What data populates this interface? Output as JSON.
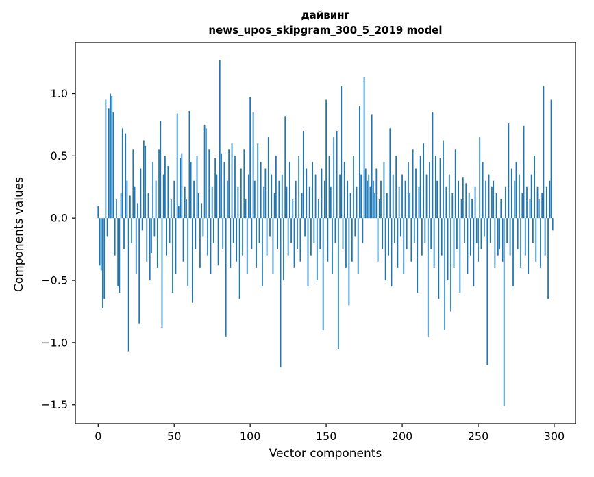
{
  "chart_data": {
    "type": "bar",
    "title": "дайвинг",
    "subtitle": "news_upos_skipgram_300_5_2019 model",
    "xlabel": "Vector components",
    "ylabel": "Components values",
    "bar_color": "#1f77b4",
    "x_start": 0,
    "xlim": [
      -15,
      314
    ],
    "ylim": [
      -1.65,
      1.41
    ],
    "xticks": [
      0,
      50,
      100,
      150,
      200,
      250,
      300
    ],
    "xtick_labels": [
      "0",
      "50",
      "100",
      "150",
      "200",
      "250",
      "300"
    ],
    "yticks": [
      1.0,
      0.5,
      0.0,
      -0.5,
      -1.0,
      -1.5
    ],
    "ytick_labels": [
      "1.0",
      "0.5",
      "0.0",
      "−0.5",
      "−1.0",
      "−1.5"
    ],
    "grid": false,
    "legend": "none",
    "values": [
      0.1,
      -0.38,
      -0.42,
      -0.72,
      -0.65,
      0.95,
      -0.15,
      0.88,
      1.0,
      0.98,
      0.85,
      -0.3,
      0.15,
      -0.55,
      -0.6,
      0.2,
      0.72,
      -0.25,
      0.68,
      0.3,
      -1.07,
      0.18,
      -0.2,
      0.55,
      0.25,
      -0.45,
      0.12,
      -0.85,
      0.4,
      -0.1,
      0.62,
      0.58,
      -0.35,
      0.2,
      -0.5,
      -0.28,
      0.45,
      -0.15,
      0.3,
      -0.4,
      0.55,
      0.78,
      -0.88,
      0.35,
      0.5,
      -0.3,
      0.42,
      -0.2,
      0.15,
      -0.6,
      0.3,
      -0.45,
      0.84,
      0.1,
      0.48,
      0.52,
      -0.35,
      0.25,
      0.15,
      -0.55,
      0.86,
      0.45,
      -0.68,
      0.3,
      -0.25,
      0.5,
      0.2,
      -0.4,
      0.12,
      -0.15,
      0.75,
      0.72,
      -0.3,
      0.55,
      -0.45,
      0.25,
      -0.2,
      0.48,
      0.35,
      -0.38,
      1.27,
      0.52,
      -0.25,
      0.45,
      -0.95,
      0.3,
      0.55,
      -0.4,
      0.6,
      -0.2,
      0.5,
      -0.35,
      0.25,
      -0.65,
      0.4,
      -0.3,
      0.55,
      0.15,
      -0.45,
      0.35,
      0.97,
      -0.25,
      0.85,
      0.3,
      -0.4,
      0.6,
      -0.2,
      0.45,
      -0.55,
      0.25,
      0.4,
      -0.3,
      0.65,
      -0.15,
      0.35,
      -0.45,
      0.2,
      0.5,
      -0.25,
      0.3,
      -1.2,
      0.35,
      -0.5,
      0.82,
      0.25,
      -0.3,
      0.45,
      -0.2,
      0.15,
      -0.4,
      0.3,
      -0.25,
      0.5,
      -0.35,
      0.2,
      0.7,
      -0.15,
      0.4,
      -0.55,
      0.25,
      -0.3,
      0.45,
      -0.2,
      0.35,
      -0.5,
      0.15,
      -0.25,
      0.4,
      -0.9,
      0.3,
      0.95,
      -0.35,
      0.5,
      0.25,
      -0.45,
      0.65,
      -0.2,
      0.7,
      -1.05,
      0.35,
      1.06,
      -0.25,
      0.45,
      -0.4,
      0.3,
      -0.7,
      0.2,
      -0.35,
      0.5,
      -0.15,
      0.25,
      -0.45,
      0.9,
      0.35,
      -0.2,
      1.13,
      0.4,
      0.3,
      0.35,
      0.25,
      0.83,
      0.3,
      0.2,
      0.4,
      -0.35,
      0.15,
      0.3,
      -0.25,
      0.45,
      -0.5,
      0.2,
      -0.3,
      0.72,
      -0.55,
      0.35,
      -0.2,
      0.5,
      -0.4,
      0.25,
      -0.15,
      0.35,
      -0.45,
      0.3,
      -0.25,
      0.45,
      0.2,
      -0.35,
      0.55,
      -0.2,
      0.4,
      -0.6,
      0.25,
      0.5,
      -0.3,
      0.6,
      -0.2,
      0.35,
      -0.95,
      0.45,
      -0.25,
      0.85,
      -0.4,
      0.5,
      0.3,
      -0.65,
      0.48,
      -0.3,
      0.62,
      -0.9,
      0.25,
      -0.5,
      0.35,
      -0.75,
      0.2,
      -0.4,
      0.55,
      -0.25,
      0.3,
      -0.6,
      0.15,
      0.33,
      -0.2,
      0.28,
      -0.45,
      0.2,
      -0.3,
      0.15,
      -0.55,
      0.25,
      -0.2,
      -0.35,
      0.65,
      -0.25,
      0.45,
      -0.15,
      0.3,
      -1.18,
      0.35,
      -0.2,
      0.25,
      0.3,
      -0.4,
      0.2,
      -0.3,
      -0.25,
      0.15,
      -0.35,
      -1.51,
      0.25,
      -0.2,
      0.76,
      -0.3,
      0.4,
      -0.55,
      0.3,
      0.45,
      -0.25,
      0.35,
      -0.4,
      0.2,
      0.74,
      -0.3,
      0.25,
      -0.45,
      0.15,
      0.35,
      -0.2,
      0.5,
      -0.35,
      0.25,
      0.15,
      -0.4,
      0.2,
      1.06,
      -0.3,
      0.25,
      -0.65,
      0.3,
      0.95,
      -0.1
    ]
  }
}
